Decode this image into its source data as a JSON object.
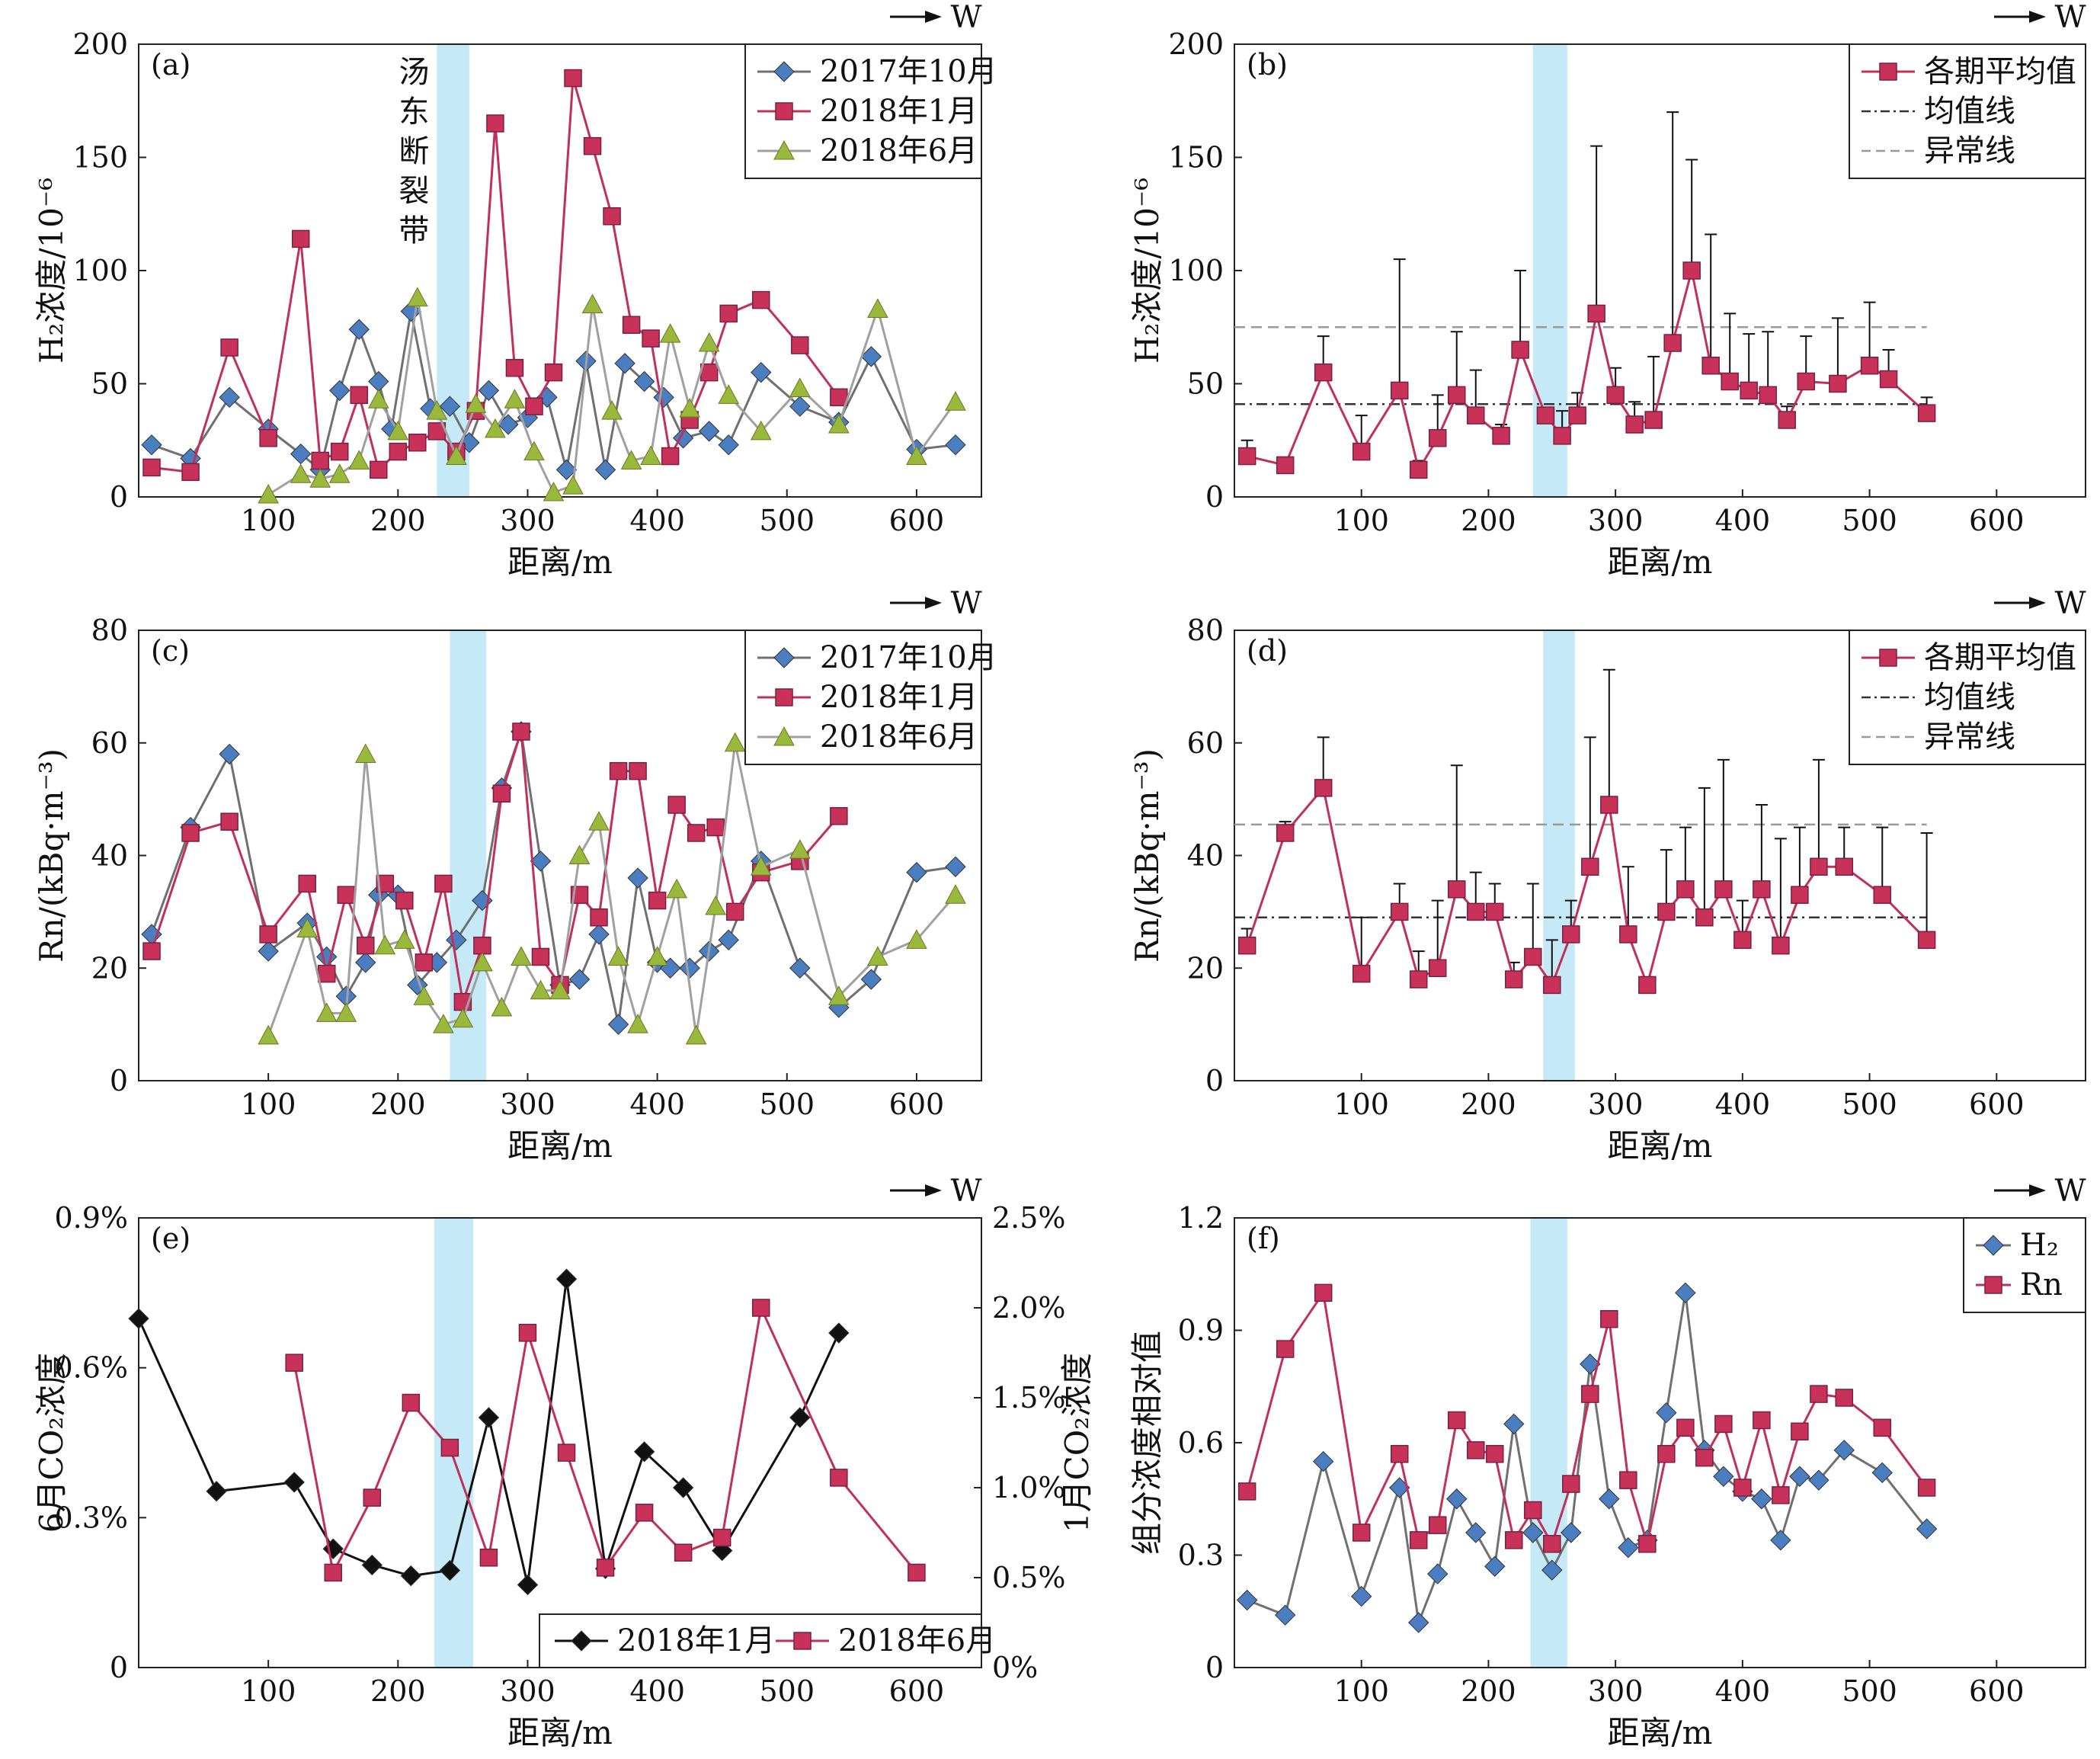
{
  "figure": {
    "direction_label": "W",
    "xlabel": "距离/m"
  },
  "chart_data": [
    {
      "id": "a",
      "type": "line",
      "panel_label": "(a)",
      "ylabel": "H₂浓度/10⁻⁶",
      "xlabel": "距离/m",
      "xlim": [
        0,
        650
      ],
      "ylim": [
        0,
        200
      ],
      "xticks": [
        "100",
        "200",
        "300",
        "400",
        "500",
        "600"
      ],
      "yticks": [
        "0",
        "50",
        "100",
        "150",
        "200"
      ],
      "fault_band": [
        230,
        255
      ],
      "fault_label": [
        "汤",
        "东",
        "断",
        "裂",
        "带"
      ],
      "legend": "top-right",
      "series": [
        {
          "name": "2017年10月",
          "color": "#4a7ec0",
          "marker": "diamond",
          "line": "#707070",
          "x": [
            10,
            40,
            70,
            100,
            125,
            140,
            155,
            170,
            185,
            195,
            210,
            225,
            240,
            255,
            270,
            285,
            300,
            315,
            330,
            345,
            360,
            375,
            390,
            405,
            420,
            440,
            455,
            480,
            510,
            540,
            565,
            600,
            630
          ],
          "y": [
            23,
            17,
            44,
            30,
            19,
            12,
            47,
            74,
            51,
            30,
            82,
            39,
            40,
            24,
            47,
            32,
            35,
            44,
            12,
            60,
            12,
            59,
            51,
            44,
            26,
            29,
            23,
            55,
            40,
            33,
            62,
            21,
            23
          ]
        },
        {
          "name": "2018年1月",
          "color": "#c8325a",
          "marker": "square",
          "line": "#c0305a",
          "x": [
            10,
            40,
            70,
            100,
            125,
            140,
            155,
            170,
            185,
            200,
            215,
            230,
            245,
            260,
            275,
            290,
            305,
            320,
            335,
            350,
            365,
            380,
            395,
            410,
            425,
            440,
            455,
            480,
            510,
            540
          ],
          "y": [
            13,
            11,
            66,
            26,
            114,
            16,
            20,
            45,
            12,
            20,
            24,
            29,
            20,
            38,
            165,
            57,
            40,
            55,
            185,
            155,
            124,
            76,
            70,
            18,
            34,
            55,
            81,
            87,
            67,
            44
          ]
        },
        {
          "name": "2018年6月",
          "color": "#9ab83c",
          "marker": "triangle",
          "line": "#a0a0a0",
          "x": [
            100,
            125,
            140,
            155,
            170,
            185,
            200,
            215,
            230,
            245,
            260,
            275,
            290,
            305,
            320,
            335,
            350,
            365,
            380,
            395,
            410,
            425,
            440,
            455,
            480,
            510,
            540,
            570,
            600,
            630
          ],
          "y": [
            1,
            10,
            8,
            10,
            16,
            43,
            29,
            88,
            38,
            18,
            41,
            30,
            43,
            20,
            2,
            5,
            85,
            38,
            16,
            18,
            72,
            39,
            68,
            45,
            29,
            48,
            32,
            83,
            18,
            42
          ]
        }
      ]
    },
    {
      "id": "b",
      "type": "line",
      "panel_label": "(b)",
      "ylabel": "H₂浓度/10⁻⁶",
      "xlabel": "距离/m",
      "xlim": [
        0,
        670
      ],
      "ylim": [
        0,
        200
      ],
      "xticks": [
        "100",
        "200",
        "300",
        "400",
        "500",
        "600"
      ],
      "yticks": [
        "0",
        "50",
        "100",
        "150",
        "200"
      ],
      "fault_band": [
        235,
        262
      ],
      "legend": "top-right",
      "mean_line": 41,
      "anomaly_line": 75,
      "mean_label": "均值线",
      "anomaly_label": "异常线",
      "series": [
        {
          "name": "各期平均值",
          "color": "#c8325a",
          "marker": "square",
          "line": "#c0305a",
          "x": [
            10,
            40,
            70,
            100,
            130,
            145,
            160,
            175,
            190,
            210,
            225,
            245,
            258,
            270,
            285,
            300,
            315,
            330,
            345,
            360,
            375,
            390,
            405,
            420,
            435,
            450,
            475,
            500,
            515,
            545
          ],
          "y": [
            18,
            14,
            55,
            20,
            47,
            12,
            26,
            45,
            36,
            27,
            65,
            36,
            27,
            36,
            81,
            45,
            32,
            34,
            68,
            100,
            58,
            51,
            47,
            45,
            34,
            51,
            50,
            58,
            52,
            37
          ],
          "err": [
            7,
            3,
            16,
            16,
            58,
            4,
            19,
            28,
            20,
            5,
            35,
            2,
            11,
            10,
            74,
            12,
            10,
            28,
            102,
            49,
            58,
            30,
            25,
            28,
            6,
            20,
            29,
            28,
            13,
            7
          ]
        }
      ]
    },
    {
      "id": "c",
      "type": "line",
      "panel_label": "(c)",
      "ylabel": "Rn/(kBq·m⁻³)",
      "xlabel": "距离/m",
      "xlim": [
        0,
        650
      ],
      "ylim": [
        0,
        80
      ],
      "xticks": [
        "100",
        "200",
        "300",
        "400",
        "500",
        "600"
      ],
      "yticks": [
        "0",
        "20",
        "40",
        "60",
        "80"
      ],
      "fault_band": [
        240,
        268
      ],
      "legend": "top-right",
      "series": [
        {
          "name": "2017年10月",
          "color": "#4a7ec0",
          "marker": "diamond",
          "line": "#707070",
          "x": [
            10,
            40,
            70,
            100,
            130,
            145,
            160,
            175,
            185,
            200,
            215,
            230,
            245,
            265,
            280,
            295,
            310,
            325,
            340,
            355,
            370,
            385,
            400,
            410,
            425,
            440,
            455,
            480,
            510,
            540,
            565,
            600,
            630
          ],
          "y": [
            26,
            45,
            58,
            23,
            28,
            22,
            15,
            21,
            33,
            33,
            17,
            21,
            25,
            32,
            52,
            62,
            39,
            17,
            18,
            26,
            10,
            36,
            21,
            20,
            20,
            23,
            25,
            39,
            20,
            13,
            18,
            37,
            38
          ]
        },
        {
          "name": "2018年1月",
          "color": "#c8325a",
          "marker": "square",
          "line": "#c0305a",
          "x": [
            10,
            40,
            70,
            100,
            130,
            145,
            160,
            175,
            190,
            205,
            220,
            235,
            250,
            265,
            280,
            295,
            310,
            325,
            340,
            355,
            370,
            385,
            400,
            415,
            430,
            445,
            460,
            480,
            510,
            540
          ],
          "y": [
            23,
            44,
            46,
            26,
            35,
            19,
            33,
            24,
            35,
            32,
            21,
            35,
            14,
            24,
            51,
            62,
            22,
            17,
            33,
            29,
            55,
            55,
            32,
            49,
            44,
            45,
            30,
            37,
            39,
            47
          ]
        },
        {
          "name": "2018年6月",
          "color": "#9ab83c",
          "marker": "triangle",
          "line": "#a0a0a0",
          "x": [
            100,
            130,
            145,
            160,
            175,
            190,
            205,
            220,
            235,
            250,
            265,
            280,
            295,
            310,
            325,
            340,
            355,
            370,
            385,
            400,
            415,
            430,
            445,
            460,
            480,
            510,
            540,
            570,
            600,
            630
          ],
          "y": [
            8,
            27,
            12,
            12,
            58,
            24,
            25,
            15,
            10,
            11,
            21,
            13,
            22,
            16,
            16,
            40,
            46,
            22,
            10,
            22,
            34,
            8,
            31,
            60,
            38,
            41,
            15,
            22,
            25,
            33
          ]
        }
      ]
    },
    {
      "id": "d",
      "type": "line",
      "panel_label": "(d)",
      "ylabel": "Rn/(kBq·m⁻³)",
      "xlabel": "距离/m",
      "xlim": [
        0,
        670
      ],
      "ylim": [
        0,
        80
      ],
      "xticks": [
        "100",
        "200",
        "300",
        "400",
        "500",
        "600"
      ],
      "yticks": [
        "0",
        "20",
        "40",
        "60",
        "80"
      ],
      "fault_band": [
        243,
        268
      ],
      "legend": "top-right",
      "mean_line": 29,
      "anomaly_line": 45.5,
      "mean_label": "均值线",
      "anomaly_label": "异常线",
      "series": [
        {
          "name": "各期平均值",
          "color": "#c8325a",
          "marker": "square",
          "line": "#c0305a",
          "x": [
            10,
            40,
            70,
            100,
            130,
            145,
            160,
            175,
            190,
            205,
            220,
            235,
            250,
            265,
            280,
            295,
            310,
            325,
            340,
            355,
            370,
            385,
            400,
            415,
            430,
            445,
            460,
            480,
            510,
            545
          ],
          "y": [
            24,
            44,
            52,
            19,
            30,
            18,
            20,
            34,
            30,
            30,
            18,
            22,
            17,
            26,
            38,
            49,
            26,
            17,
            30,
            34,
            29,
            34,
            25,
            34,
            24,
            33,
            38,
            38,
            33,
            25
          ],
          "err": [
            3,
            2,
            9,
            10,
            5,
            5,
            12,
            22,
            7,
            5,
            3,
            13,
            8,
            6,
            23,
            24,
            12,
            1,
            11,
            11,
            23,
            23,
            7,
            15,
            19,
            12,
            19,
            7,
            12,
            19
          ]
        }
      ]
    },
    {
      "id": "e",
      "type": "line",
      "panel_label": "(e)",
      "ylabel": "6月CO₂浓度",
      "ylabel_right": "1月CO₂浓度",
      "xlabel": "距离/m",
      "xlim": [
        0,
        650
      ],
      "ylim": [
        0,
        0.9
      ],
      "ylim_right": [
        0,
        2.5
      ],
      "xticks": [
        "100",
        "200",
        "300",
        "400",
        "500",
        "600"
      ],
      "yticks": [
        "0",
        "0.3%",
        "0.6%",
        "0.9%"
      ],
      "yticks_right": [
        "0%",
        "0.5%",
        "1.0%",
        "1.5%",
        "2.0%",
        "2.5%"
      ],
      "fault_band": [
        228,
        258
      ],
      "legend": "bottom-right",
      "series": [
        {
          "name": "2018年1月",
          "axis": "right",
          "color": "#111111",
          "marker": "diamond",
          "line": "#111111",
          "x": [
            0,
            60,
            120,
            150,
            180,
            210,
            240,
            270,
            300,
            330,
            360,
            390,
            420,
            450,
            510,
            540
          ],
          "y": [
            1.94,
            0.98,
            1.03,
            0.66,
            0.57,
            0.51,
            0.54,
            1.39,
            0.46,
            2.16,
            0.55,
            1.2,
            1.0,
            0.65,
            1.39,
            1.86
          ]
        },
        {
          "name": "2018年6月",
          "axis": "left",
          "color": "#c8325a",
          "marker": "square",
          "line": "#c0305a",
          "x": [
            120,
            150,
            180,
            210,
            240,
            270,
            300,
            330,
            360,
            390,
            420,
            450,
            480,
            540,
            600
          ],
          "y": [
            0.61,
            0.19,
            0.34,
            0.53,
            0.44,
            0.22,
            0.67,
            0.43,
            0.2,
            0.31,
            0.23,
            0.26,
            0.72,
            0.38,
            0.19
          ]
        }
      ]
    },
    {
      "id": "f",
      "type": "line",
      "panel_label": "(f)",
      "ylabel": "组分浓度相对值",
      "xlabel": "距离/m",
      "xlim": [
        0,
        670
      ],
      "ylim": [
        0,
        1.2
      ],
      "xticks": [
        "100",
        "200",
        "300",
        "400",
        "500",
        "600"
      ],
      "yticks": [
        "0",
        "0.3",
        "0.6",
        "0.9",
        "1.2"
      ],
      "fault_band": [
        233,
        262
      ],
      "legend": "top-right",
      "series": [
        {
          "name": "H₂",
          "color": "#4a7ec0",
          "marker": "diamond",
          "line": "#707070",
          "x": [
            10,
            40,
            70,
            100,
            130,
            145,
            160,
            175,
            190,
            205,
            220,
            235,
            250,
            265,
            280,
            295,
            310,
            325,
            340,
            355,
            370,
            385,
            400,
            415,
            430,
            445,
            460,
            480,
            510,
            545
          ],
          "y": [
            0.18,
            0.14,
            0.55,
            0.19,
            0.48,
            0.12,
            0.25,
            0.45,
            0.36,
            0.27,
            0.65,
            0.36,
            0.26,
            0.36,
            0.81,
            0.45,
            0.32,
            0.34,
            0.68,
            1.0,
            0.58,
            0.51,
            0.47,
            0.45,
            0.34,
            0.51,
            0.5,
            0.58,
            0.52,
            0.37
          ]
        },
        {
          "name": "Rn",
          "color": "#c8325a",
          "marker": "square",
          "line": "#c0305a",
          "x": [
            10,
            40,
            70,
            100,
            130,
            145,
            160,
            175,
            190,
            205,
            220,
            235,
            250,
            265,
            280,
            295,
            310,
            325,
            340,
            355,
            370,
            385,
            400,
            415,
            430,
            445,
            460,
            480,
            510,
            545
          ],
          "y": [
            0.47,
            0.85,
            1.0,
            0.36,
            0.57,
            0.34,
            0.38,
            0.66,
            0.58,
            0.57,
            0.34,
            0.42,
            0.33,
            0.49,
            0.73,
            0.93,
            0.5,
            0.33,
            0.57,
            0.64,
            0.56,
            0.65,
            0.48,
            0.66,
            0.46,
            0.63,
            0.73,
            0.72,
            0.64,
            0.48
          ]
        }
      ]
    }
  ]
}
